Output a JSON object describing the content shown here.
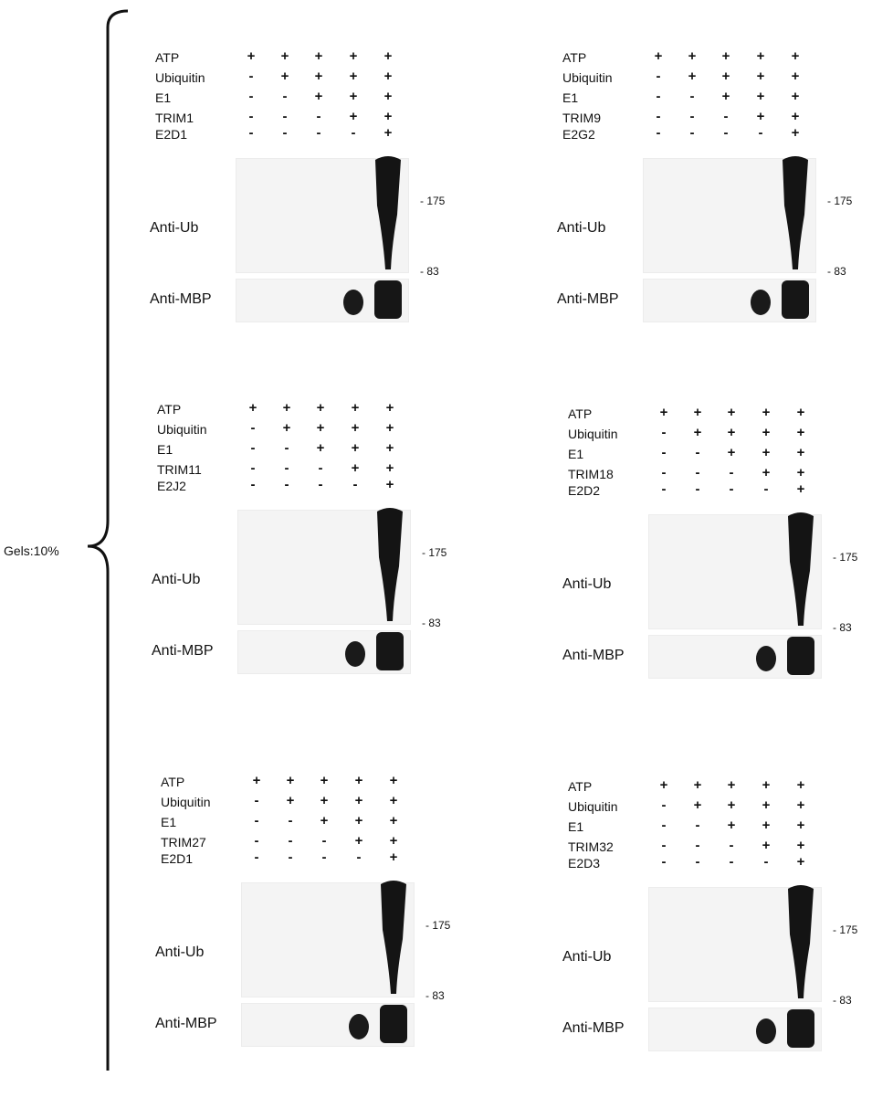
{
  "gels_label": "Gels:10%",
  "row_labels": [
    "ATP",
    "Ubiquitin",
    "E1"
  ],
  "blot_labels": {
    "ub": "Anti-Ub",
    "mbp": "Anti-MBP"
  },
  "mw_markers": [
    "- 175",
    "- 83"
  ],
  "panels": [
    {
      "trim": "TRIM1",
      "e2": "E2D1",
      "signs": [
        [
          "+",
          "+",
          "+",
          "+",
          "+"
        ],
        [
          "-",
          "+",
          "+",
          "+",
          "+"
        ],
        [
          "-",
          "-",
          "+",
          "+",
          "+"
        ],
        [
          "-",
          "-",
          "-",
          "+",
          "+"
        ],
        [
          "-",
          "-",
          "-",
          "-",
          "+"
        ]
      ]
    },
    {
      "trim": "TRIM9",
      "e2": "E2G2",
      "signs": [
        [
          "+",
          "+",
          "+",
          "+",
          "+"
        ],
        [
          "-",
          "+",
          "+",
          "+",
          "+"
        ],
        [
          "-",
          "-",
          "+",
          "+",
          "+"
        ],
        [
          "-",
          "-",
          "-",
          "+",
          "+"
        ],
        [
          "-",
          "-",
          "-",
          "-",
          "+"
        ]
      ]
    },
    {
      "trim": "TRIM11",
      "e2": "E2J2",
      "signs": [
        [
          "+",
          "+",
          "+",
          "+",
          "+"
        ],
        [
          "-",
          "+",
          "+",
          "+",
          "+"
        ],
        [
          "-",
          "-",
          "+",
          "+",
          "+"
        ],
        [
          "-",
          "-",
          "-",
          "+",
          "+"
        ],
        [
          "-",
          "-",
          "-",
          "-",
          "+"
        ]
      ]
    },
    {
      "trim": "TRIM18",
      "e2": "E2D2",
      "signs": [
        [
          "+",
          "+",
          "+",
          "+",
          "+"
        ],
        [
          "-",
          "+",
          "+",
          "+",
          "+"
        ],
        [
          "-",
          "-",
          "+",
          "+",
          "+"
        ],
        [
          "-",
          "-",
          "-",
          "+",
          "+"
        ],
        [
          "-",
          "-",
          "-",
          "-",
          "+"
        ]
      ]
    },
    {
      "trim": "TRIM27",
      "e2": "E2D1",
      "signs": [
        [
          "+",
          "+",
          "+",
          "+",
          "+"
        ],
        [
          "-",
          "+",
          "+",
          "+",
          "+"
        ],
        [
          "-",
          "-",
          "+",
          "+",
          "+"
        ],
        [
          "-",
          "-",
          "-",
          "+",
          "+"
        ],
        [
          "-",
          "-",
          "-",
          "-",
          "+"
        ]
      ]
    },
    {
      "trim": "TRIM32",
      "e2": "E2D3",
      "signs": [
        [
          "+",
          "+",
          "+",
          "+",
          "+"
        ],
        [
          "-",
          "+",
          "+",
          "+",
          "+"
        ],
        [
          "-",
          "-",
          "+",
          "+",
          "+"
        ],
        [
          "-",
          "-",
          "-",
          "+",
          "+"
        ],
        [
          "-",
          "-",
          "-",
          "-",
          "+"
        ]
      ]
    }
  ]
}
